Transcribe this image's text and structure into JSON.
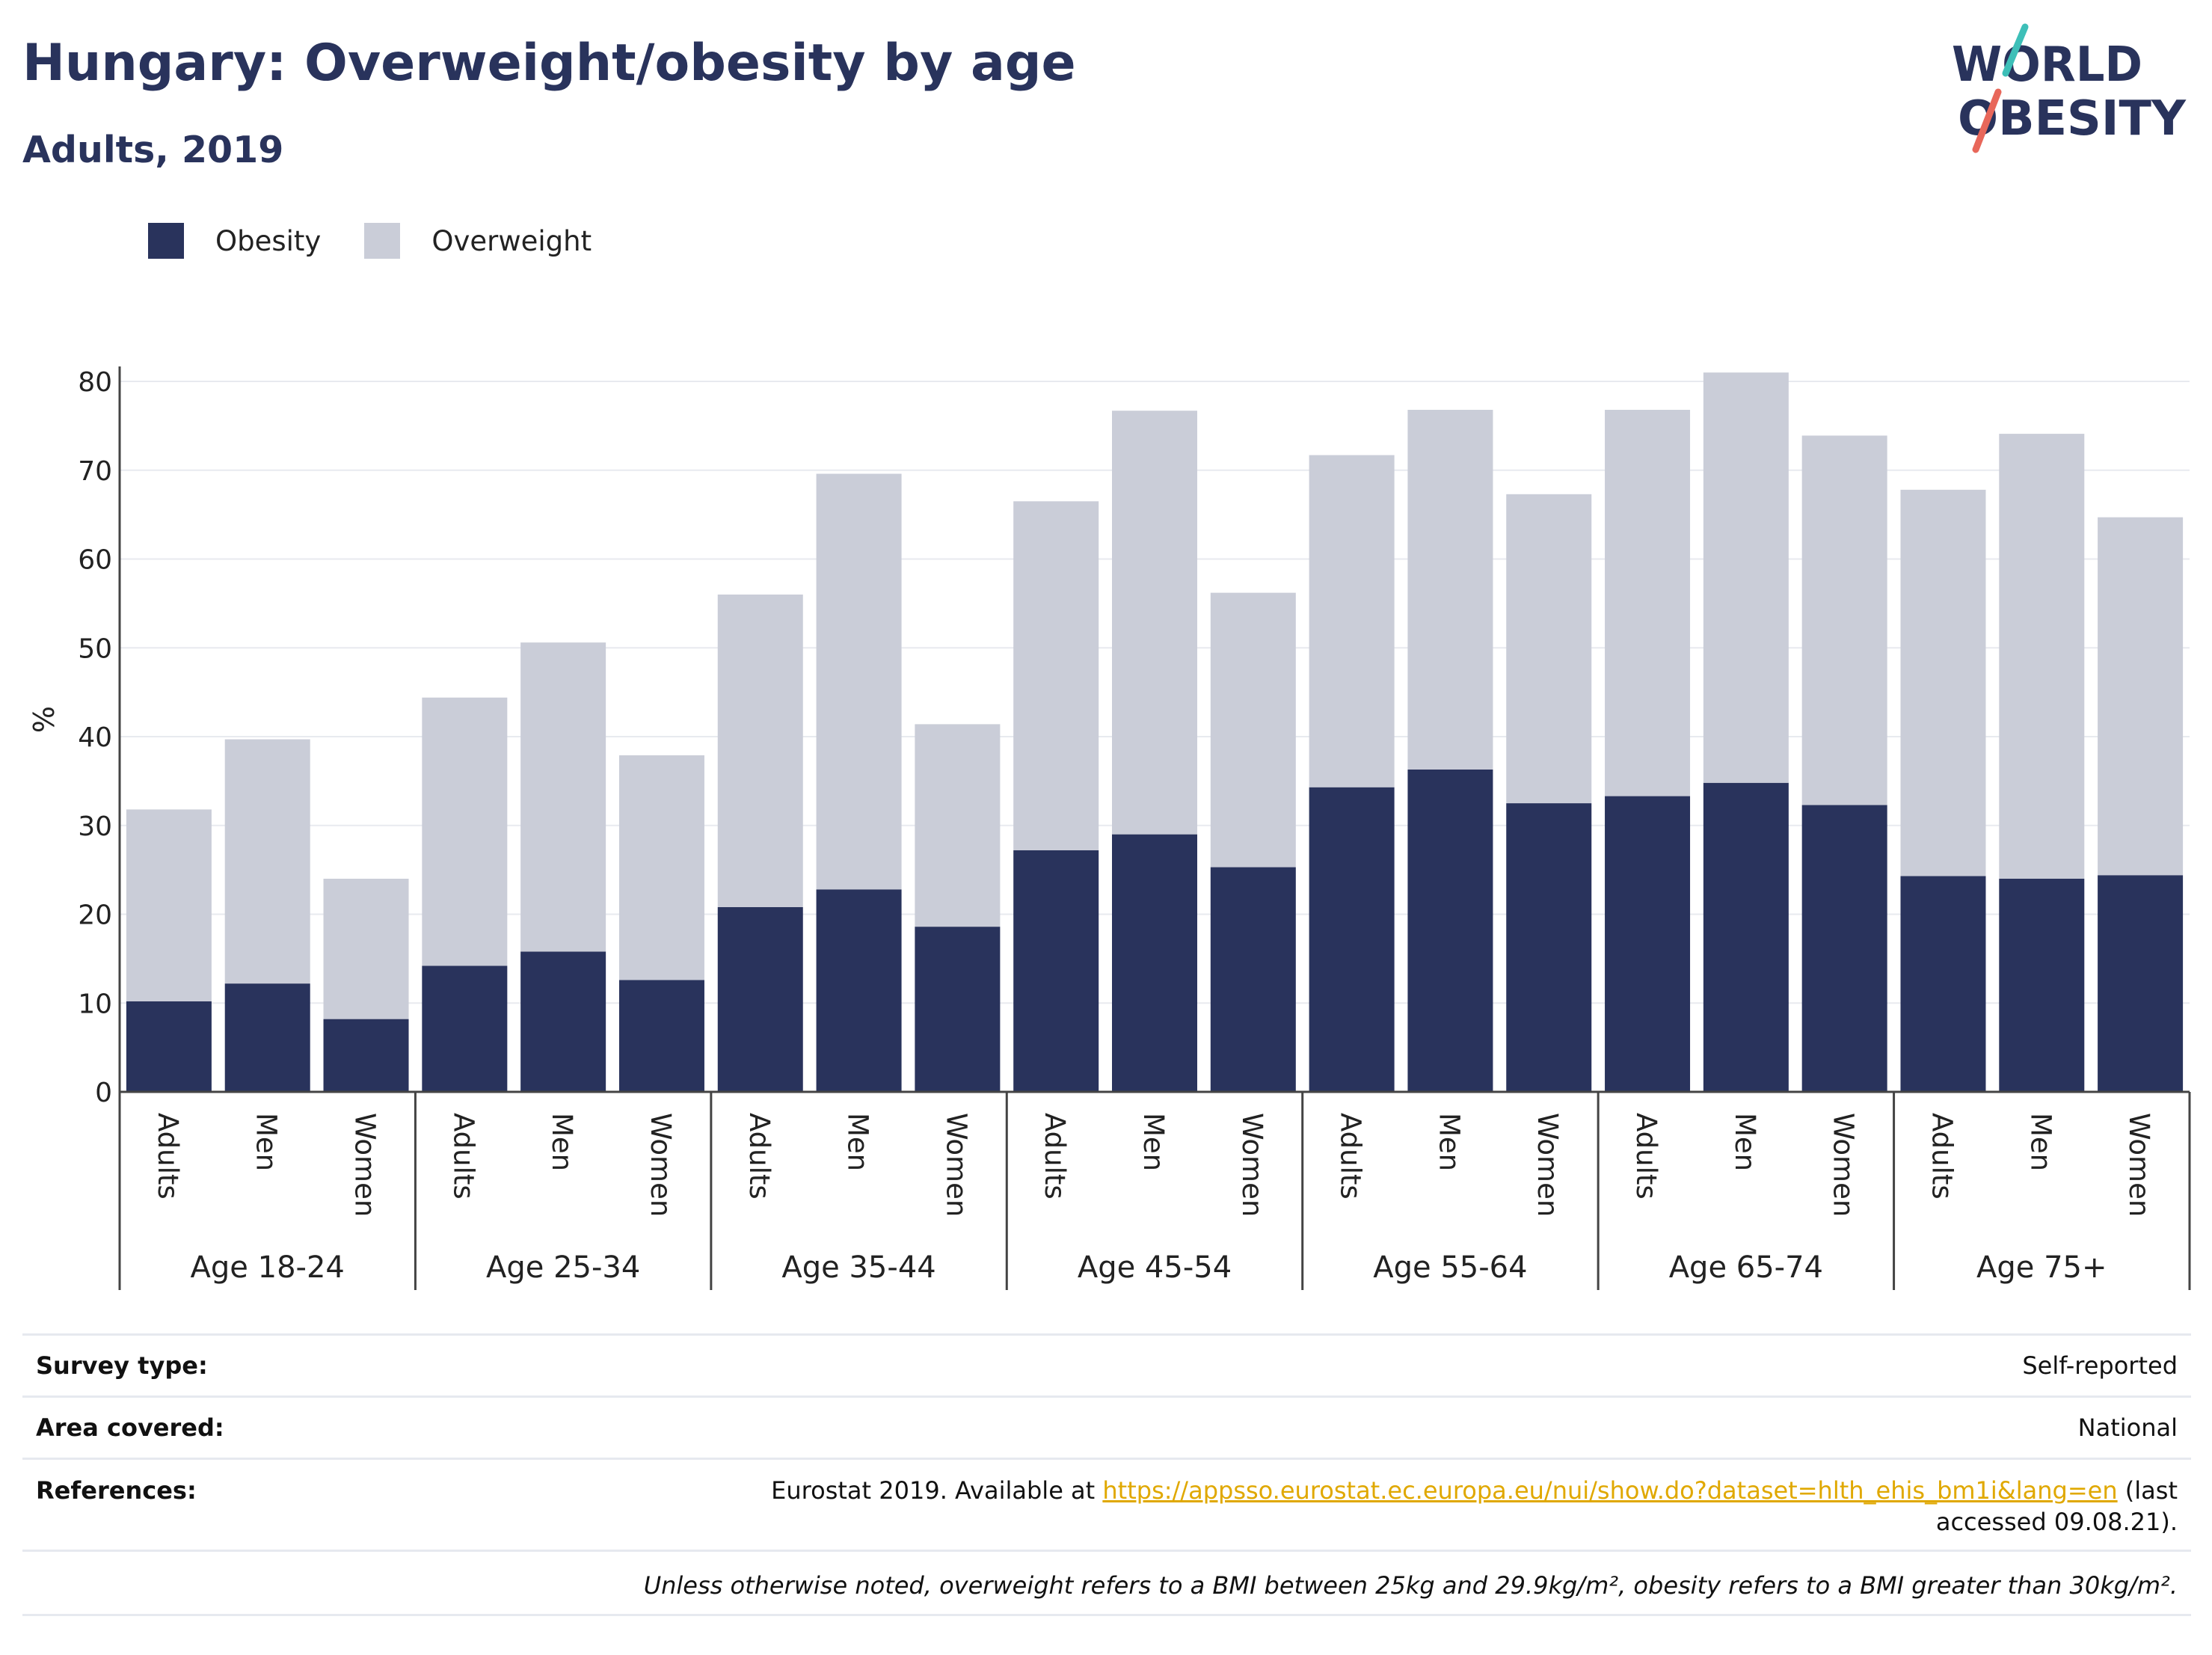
{
  "title": "Hungary: Overweight/obesity by age",
  "subtitle": "Adults, 2019",
  "logo": {
    "line1": "WORLD",
    "line2": "OBESITY"
  },
  "colors": {
    "obesity": "#29335c",
    "overweight": "#cacdd8",
    "accent_teal": "#3dbfb8",
    "accent_coral": "#e8675a",
    "link": "#e0a800"
  },
  "info": {
    "survey_type_label": "Survey type:",
    "survey_type_value": "Self-reported",
    "area_label": "Area covered:",
    "area_value": "National",
    "references_label": "References:",
    "references_prefix": "Eurostat 2019. Available at",
    "references_link": "https://appsso.eurostat.ec.europa.eu/nui/show.do?dataset=hlth_ehis_bm1i&lang=en",
    "references_suffix": "(last accessed 09.08.21).",
    "note": "Unless otherwise noted, overweight refers to a BMI between 25kg and 29.9kg/m², obesity refers to a BMI greater than 30kg/m²."
  },
  "chart_data": {
    "type": "bar",
    "stacked": true,
    "title": "Hungary: Overweight/obesity by age",
    "subtitle": "Adults, 2019",
    "ylabel": "%",
    "ylim": [
      0,
      80
    ],
    "yticks": [
      0,
      10,
      20,
      30,
      40,
      50,
      60,
      70,
      80
    ],
    "grid": true,
    "legend_position": "top-left",
    "groups": [
      "Age 18-24",
      "Age 25-34",
      "Age 35-44",
      "Age 45-54",
      "Age 55-64",
      "Age 65-74",
      "Age 75+"
    ],
    "subcategories": [
      "Adults",
      "Men",
      "Women"
    ],
    "series": [
      {
        "name": "Obesity",
        "color": "#29335c",
        "values": [
          10.2,
          12.2,
          8.2,
          14.2,
          15.8,
          12.6,
          20.8,
          22.8,
          18.6,
          27.2,
          29.0,
          25.3,
          34.3,
          36.3,
          32.5,
          33.3,
          34.8,
          32.3,
          24.3,
          24.0,
          24.4
        ]
      },
      {
        "name": "Overweight",
        "color": "#cacdd8",
        "values": [
          21.6,
          27.5,
          15.8,
          30.2,
          34.8,
          25.3,
          35.2,
          46.8,
          22.8,
          39.3,
          47.7,
          30.9,
          37.4,
          40.5,
          34.8,
          43.5,
          46.2,
          41.6,
          43.5,
          50.1,
          40.3
        ]
      }
    ]
  }
}
